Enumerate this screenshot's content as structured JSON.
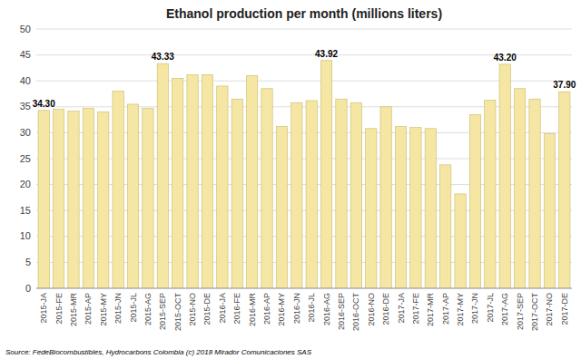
{
  "chart_data": {
    "type": "bar",
    "title": "Ethanol production per month (millions liters)",
    "categories": [
      "2015-JA",
      "2015-FE",
      "2015-MR",
      "2015-AP",
      "2015-MY",
      "2015-JN",
      "2015-JL",
      "2015-AG",
      "2015-SEP",
      "2015-OCT",
      "2015-NO",
      "2015-DE",
      "2016-JA",
      "2016-FE",
      "2016-MR",
      "2016-AP",
      "2016-MY",
      "2016-JN",
      "2016-JL",
      "2016-AG",
      "2016-SEP",
      "2016-OCT",
      "2016-NO",
      "2016-DE",
      "2017-JA",
      "2017-FE",
      "2017-MR",
      "2017-AP",
      "2017-MY",
      "2017-JN",
      "2017-JL",
      "2017-AG",
      "2017-SEP",
      "2017-OCT",
      "2017-NO",
      "2017-DE"
    ],
    "values": [
      34.3,
      34.5,
      34.2,
      34.7,
      34.0,
      38.0,
      35.5,
      34.7,
      43.33,
      40.5,
      41.2,
      41.2,
      39.0,
      36.5,
      41.0,
      38.5,
      31.2,
      35.8,
      36.2,
      43.92,
      36.5,
      35.8,
      30.8,
      35.0,
      31.2,
      31.0,
      30.8,
      23.8,
      18.2,
      33.5,
      36.3,
      43.2,
      38.5,
      36.5,
      29.8,
      37.9
    ],
    "value_labels": [
      "34.30",
      null,
      null,
      null,
      null,
      null,
      null,
      null,
      "43.33",
      null,
      null,
      null,
      null,
      null,
      null,
      null,
      null,
      null,
      null,
      "43.92",
      null,
      null,
      null,
      null,
      null,
      null,
      null,
      null,
      null,
      null,
      null,
      "43.20",
      null,
      null,
      null,
      "37.90"
    ],
    "color": "#F5E6A3",
    "ylim": [
      0,
      50
    ],
    "yticks": [
      0,
      5,
      10,
      15,
      20,
      25,
      30,
      35,
      40,
      45,
      50
    ],
    "grid": true,
    "source": "Source: FedeBiocombustibles,  Hydrocarbons Colombia (c) 2018 Mirador Comunicaciones SAS"
  }
}
